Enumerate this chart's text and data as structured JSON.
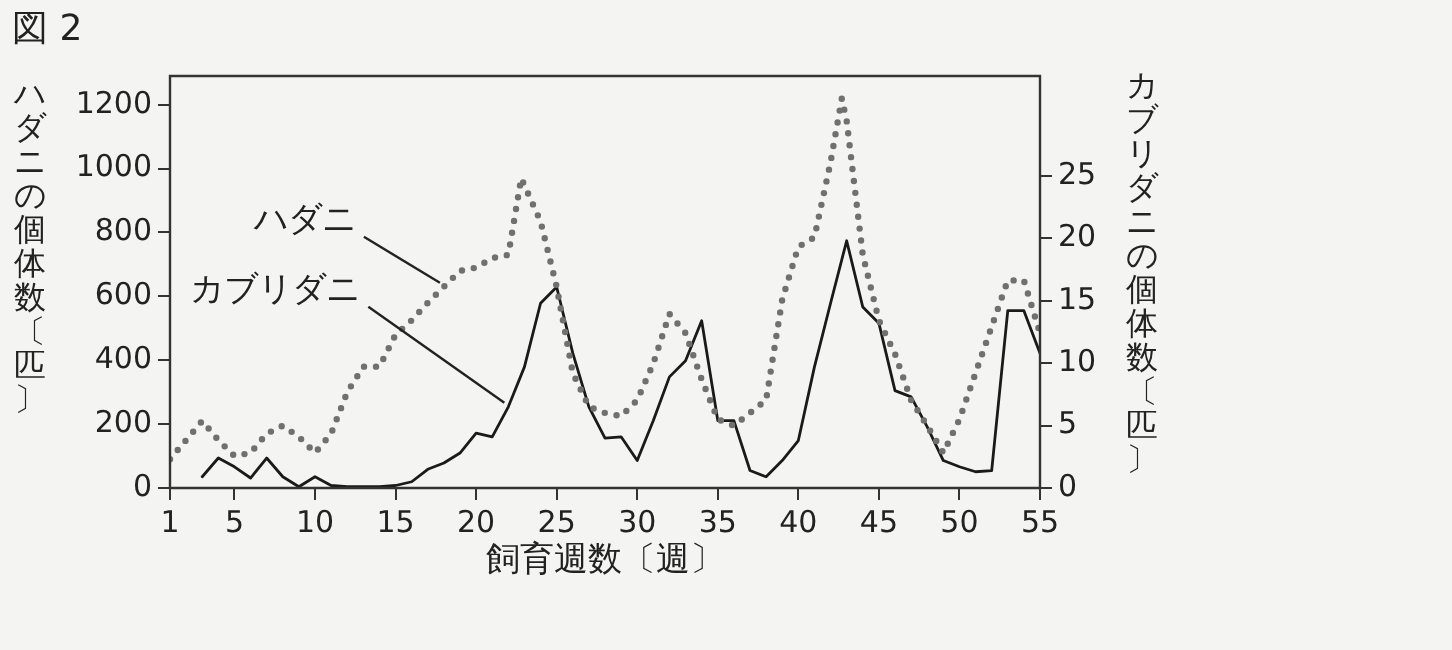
{
  "chart_data": {
    "type": "line",
    "title": "図 2",
    "xlabel": "飼育週数〔週〕",
    "ylabel": "ハダニの個体数〔匹〕",
    "y2label": "カブリダニの個体数〔匹〕",
    "xlim": [
      1,
      55
    ],
    "xticks": [
      1,
      5,
      10,
      15,
      20,
      25,
      30,
      35,
      40,
      45,
      50,
      55
    ],
    "ylim": [
      0,
      1290
    ],
    "yticks": [
      0,
      200,
      400,
      600,
      800,
      1000,
      1200
    ],
    "y2lim": [
      0,
      33
    ],
    "y2ticks": [
      0,
      5,
      10,
      15,
      20,
      25
    ],
    "legend": false,
    "grid": false,
    "marker": "none",
    "series": [
      {
        "name": "ハダニ",
        "color": "#707070",
        "line_style": "dotted",
        "x": [
          1,
          2,
          3,
          4,
          5,
          6,
          7,
          8,
          9,
          10,
          11,
          12,
          13,
          14,
          15,
          16,
          17,
          18,
          19,
          20,
          21,
          22,
          22.8,
          24,
          25,
          26,
          27,
          28,
          29,
          30,
          31,
          32,
          33,
          34,
          35,
          36,
          37,
          38,
          39,
          40,
          41,
          42,
          42.7,
          43,
          44,
          45,
          46,
          47,
          48,
          49,
          50,
          51,
          52,
          53,
          54,
          55
        ],
        "values": [
          90,
          150,
          210,
          150,
          100,
          110,
          170,
          195,
          160,
          110,
          170,
          300,
          380,
          380,
          480,
          525,
          580,
          630,
          680,
          690,
          720,
          730,
          970,
          835,
          630,
          360,
          255,
          235,
          225,
          275,
          390,
          545,
          485,
          340,
          215,
          195,
          235,
          275,
          590,
          755,
          785,
          1020,
          1220,
          1150,
          730,
          525,
          420,
          275,
          195,
          110,
          215,
          360,
          505,
          650,
          650,
          485
        ]
      },
      {
        "name": "カブリダニ",
        "color": "#1a1a1a",
        "line_style": "solid",
        "axis": "y2",
        "x": [
          3,
          4,
          5,
          6,
          7,
          8,
          9,
          10,
          11,
          12,
          13,
          14,
          15,
          16,
          17,
          18,
          19,
          20,
          21,
          22,
          23,
          24,
          25,
          26,
          27,
          28,
          29,
          30,
          31,
          32,
          33,
          34,
          35,
          36,
          37,
          38,
          39,
          40,
          41,
          42,
          43,
          44,
          45,
          46,
          47,
          48,
          49,
          50,
          51,
          52,
          53,
          54,
          55
        ],
        "values": [
          0.9,
          2.4,
          1.7,
          0.8,
          2.4,
          0.9,
          0.1,
          0.9,
          0.2,
          0.1,
          0.1,
          0.1,
          0.2,
          0.5,
          1.5,
          2,
          2.8,
          4.4,
          4.1,
          6.5,
          9.7,
          14.8,
          16.1,
          10.8,
          6.5,
          4,
          4.1,
          2.2,
          5.4,
          8.9,
          10.2,
          13.4,
          5.4,
          5.4,
          1.4,
          0.9,
          2.2,
          3.8,
          9.7,
          14.8,
          19.8,
          14.5,
          13.2,
          7.8,
          7.3,
          4.9,
          2.2,
          1.7,
          1.3,
          1.4,
          14.2,
          14.2,
          10.8
        ]
      }
    ]
  }
}
